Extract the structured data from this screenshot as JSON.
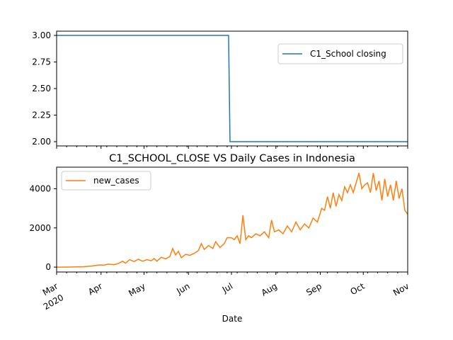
{
  "colors": {
    "school": "#1f77b4",
    "cases": "#ff7f0e",
    "axis": "#000000",
    "legend_border": "#cccccc"
  },
  "chart_data": [
    {
      "type": "line",
      "title": "",
      "xlabel": "",
      "ylabel": "",
      "legend": {
        "position": "top-right",
        "entries": [
          "C1_School closing"
        ]
      },
      "xlim": [
        "2020-03-01",
        "2020-11-01"
      ],
      "ylim": [
        1.96,
        3.04
      ],
      "yticks": [
        "2.00",
        "2.25",
        "2.50",
        "2.75",
        "3.00"
      ],
      "grid": false,
      "series": [
        {
          "name": "C1_School closing",
          "points": [
            [
              "2020-03-01",
              3.0
            ],
            [
              "2020-06-29",
              3.0
            ],
            [
              "2020-06-30",
              2.0
            ],
            [
              "2020-11-01",
              2.0
            ]
          ]
        }
      ]
    },
    {
      "type": "line",
      "title": "C1_SCHOOL_CLOSE VS Daily Cases in Indonesia",
      "xlabel": "Date",
      "ylabel": "",
      "legend": {
        "position": "top-left",
        "entries": [
          "new_cases"
        ]
      },
      "xlim": [
        "2020-03-01",
        "2020-11-01"
      ],
      "ylim": [
        -250,
        5100
      ],
      "yticks": [
        "0",
        "2000",
        "4000"
      ],
      "xticks": [
        {
          "label": "Mar",
          "sub": "2020"
        },
        {
          "label": "Apr",
          "sub": ""
        },
        {
          "label": "May",
          "sub": ""
        },
        {
          "label": "Jun",
          "sub": ""
        },
        {
          "label": "Jul",
          "sub": ""
        },
        {
          "label": "Aug",
          "sub": ""
        },
        {
          "label": "Sep",
          "sub": ""
        },
        {
          "label": "Oct",
          "sub": ""
        },
        {
          "label": "Nov",
          "sub": ""
        }
      ],
      "grid": false,
      "series": [
        {
          "name": "new_cases",
          "points": [
            [
              "2020-03-01",
              0
            ],
            [
              "2020-03-05",
              0
            ],
            [
              "2020-03-10",
              2
            ],
            [
              "2020-03-15",
              10
            ],
            [
              "2020-03-20",
              20
            ],
            [
              "2020-03-25",
              50
            ],
            [
              "2020-03-31",
              110
            ],
            [
              "2020-04-03",
              100
            ],
            [
              "2020-04-06",
              150
            ],
            [
              "2020-04-10",
              120
            ],
            [
              "2020-04-13",
              180
            ],
            [
              "2020-04-16",
              300
            ],
            [
              "2020-04-18",
              200
            ],
            [
              "2020-04-21",
              380
            ],
            [
              "2020-04-24",
              280
            ],
            [
              "2020-04-27",
              400
            ],
            [
              "2020-04-30",
              300
            ],
            [
              "2020-05-03",
              380
            ],
            [
              "2020-05-06",
              320
            ],
            [
              "2020-05-08",
              440
            ],
            [
              "2020-05-10",
              300
            ],
            [
              "2020-05-13",
              500
            ],
            [
              "2020-05-16",
              420
            ],
            [
              "2020-05-19",
              540
            ],
            [
              "2020-05-21",
              950
            ],
            [
              "2020-05-23",
              620
            ],
            [
              "2020-05-25",
              800
            ],
            [
              "2020-05-27",
              480
            ],
            [
              "2020-05-30",
              650
            ],
            [
              "2020-06-02",
              600
            ],
            [
              "2020-06-05",
              700
            ],
            [
              "2020-06-08",
              850
            ],
            [
              "2020-06-10",
              1200
            ],
            [
              "2020-06-12",
              900
            ],
            [
              "2020-06-15",
              1100
            ],
            [
              "2020-06-18",
              950
            ],
            [
              "2020-06-20",
              1300
            ],
            [
              "2020-06-23",
              1000
            ],
            [
              "2020-06-26",
              1200
            ],
            [
              "2020-06-28",
              1500
            ],
            [
              "2020-07-01",
              1500
            ],
            [
              "2020-07-03",
              1400
            ],
            [
              "2020-07-05",
              1600
            ],
            [
              "2020-07-07",
              1200
            ],
            [
              "2020-07-09",
              2650
            ],
            [
              "2020-07-11",
              1400
            ],
            [
              "2020-07-13",
              1600
            ],
            [
              "2020-07-15",
              1500
            ],
            [
              "2020-07-18",
              1700
            ],
            [
              "2020-07-21",
              1600
            ],
            [
              "2020-07-24",
              1800
            ],
            [
              "2020-07-27",
              1500
            ],
            [
              "2020-07-29",
              2400
            ],
            [
              "2020-07-31",
              1800
            ],
            [
              "2020-08-03",
              1900
            ],
            [
              "2020-08-06",
              1700
            ],
            [
              "2020-08-09",
              2100
            ],
            [
              "2020-08-12",
              1800
            ],
            [
              "2020-08-15",
              2300
            ],
            [
              "2020-08-18",
              1900
            ],
            [
              "2020-08-21",
              2200
            ],
            [
              "2020-08-24",
              2000
            ],
            [
              "2020-08-27",
              2500
            ],
            [
              "2020-08-30",
              2300
            ],
            [
              "2020-09-02",
              3000
            ],
            [
              "2020-09-04",
              2900
            ],
            [
              "2020-09-06",
              3600
            ],
            [
              "2020-09-08",
              3000
            ],
            [
              "2020-09-10",
              3800
            ],
            [
              "2020-09-12",
              3100
            ],
            [
              "2020-09-14",
              3700
            ],
            [
              "2020-09-16",
              3400
            ],
            [
              "2020-09-18",
              4100
            ],
            [
              "2020-09-20",
              3800
            ],
            [
              "2020-09-22",
              4200
            ],
            [
              "2020-09-24",
              3800
            ],
            [
              "2020-09-26",
              4300
            ],
            [
              "2020-09-28",
              4800
            ],
            [
              "2020-09-30",
              4000
            ],
            [
              "2020-10-02",
              4200
            ],
            [
              "2020-10-04",
              4300
            ],
            [
              "2020-10-06",
              3800
            ],
            [
              "2020-10-08",
              4800
            ],
            [
              "2020-10-10",
              3900
            ],
            [
              "2020-10-12",
              4400
            ],
            [
              "2020-10-14",
              3400
            ],
            [
              "2020-10-16",
              4500
            ],
            [
              "2020-10-18",
              3600
            ],
            [
              "2020-10-20",
              4200
            ],
            [
              "2020-10-22",
              3400
            ],
            [
              "2020-10-24",
              4400
            ],
            [
              "2020-10-26",
              3500
            ],
            [
              "2020-10-28",
              4000
            ],
            [
              "2020-10-30",
              2900
            ],
            [
              "2020-11-01",
              2700
            ]
          ]
        }
      ]
    }
  ]
}
